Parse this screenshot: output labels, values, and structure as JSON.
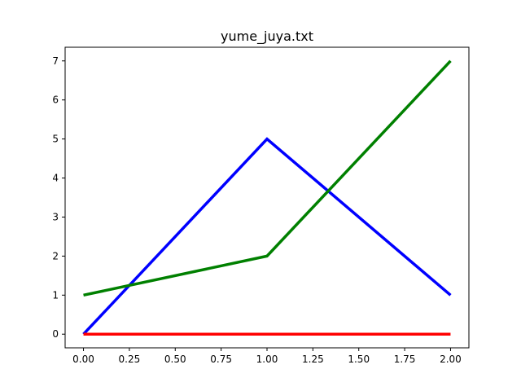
{
  "chart_data": {
    "type": "line",
    "title": "yume_juya.txt",
    "xlabel": "",
    "ylabel": "",
    "x": [
      0,
      1,
      2
    ],
    "series": [
      {
        "values": [
          0,
          5,
          1
        ],
        "color": "#0000ff"
      },
      {
        "values": [
          1,
          2,
          7
        ],
        "color": "#008000"
      },
      {
        "values": [
          0,
          0,
          0
        ],
        "color": "#ff0000"
      }
    ],
    "xlim": [
      -0.1,
      2.1
    ],
    "ylim": [
      -0.35,
      7.35
    ],
    "xticks": [
      0.0,
      0.25,
      0.5,
      0.75,
      1.0,
      1.25,
      1.5,
      1.75,
      2.0
    ],
    "xtick_labels": [
      "0.00",
      "0.25",
      "0.50",
      "0.75",
      "1.00",
      "1.25",
      "1.50",
      "1.75",
      "2.00"
    ],
    "yticks": [
      0,
      1,
      2,
      3,
      4,
      5,
      6,
      7
    ],
    "ytick_labels": [
      "0",
      "1",
      "2",
      "3",
      "4",
      "5",
      "6",
      "7"
    ],
    "grid": false,
    "legend": false
  }
}
